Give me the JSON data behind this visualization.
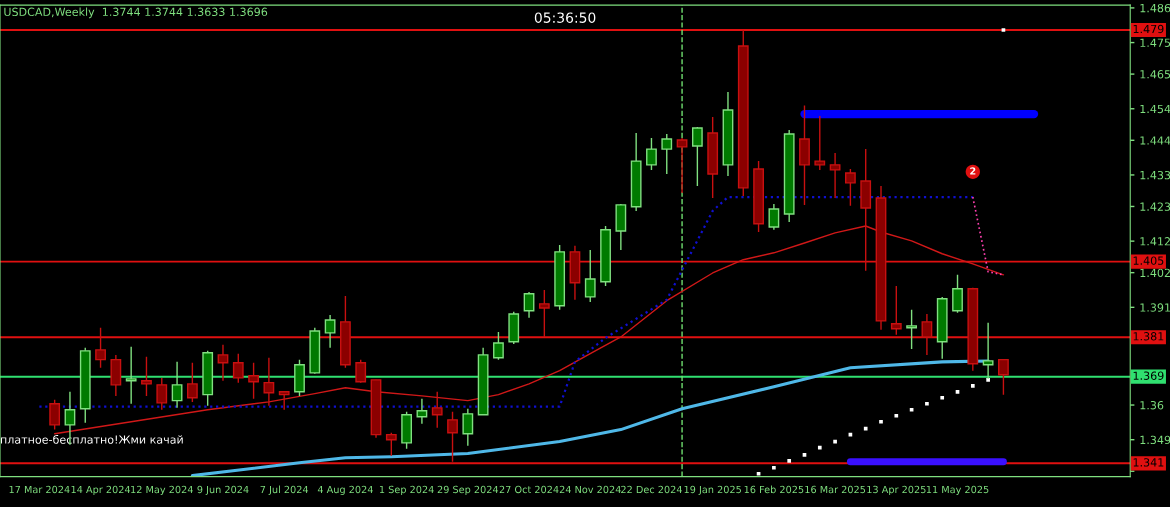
{
  "chart_data": {
    "type": "candlestick",
    "title": "USDCAD,Weekly  1.3744 1.3744 1.3633 1.3696",
    "x": [
      "2024-03-24",
      "2024-03-31",
      "2024-04-07",
      "2024-04-14",
      "2024-04-21",
      "2024-04-28",
      "2024-05-05",
      "2024-05-12",
      "2024-05-19",
      "2024-05-26",
      "2024-06-02",
      "2024-06-09",
      "2024-06-16",
      "2024-06-23",
      "2024-06-30",
      "2024-07-07",
      "2024-07-14",
      "2024-07-21",
      "2024-07-28",
      "2024-08-04",
      "2024-08-11",
      "2024-08-18",
      "2024-08-25",
      "2024-09-01",
      "2024-09-08",
      "2024-09-15",
      "2024-09-22",
      "2024-09-29",
      "2024-10-06",
      "2024-10-13",
      "2024-10-20",
      "2024-10-27",
      "2024-11-03",
      "2024-11-10",
      "2024-11-17",
      "2024-11-24",
      "2024-12-01",
      "2024-12-08",
      "2024-12-15",
      "2024-12-22",
      "2024-12-29",
      "2025-01-05",
      "2025-01-12",
      "2025-01-19",
      "2025-01-26",
      "2025-02-02",
      "2025-02-09",
      "2025-02-16",
      "2025-02-23",
      "2025-03-02",
      "2025-03-09",
      "2025-03-16",
      "2025-03-23",
      "2025-03-30",
      "2025-04-06",
      "2025-04-13",
      "2025-04-20",
      "2025-04-27",
      "2025-05-04",
      "2025-05-11",
      "2025-05-18",
      "2025-05-25",
      "2025-06-01"
    ],
    "ohlc": [
      [
        1.3604,
        1.3617,
        1.3522,
        1.3537
      ],
      [
        1.3537,
        1.3642,
        1.3474,
        1.3585
      ],
      [
        1.3588,
        1.3782,
        1.3544,
        1.3772
      ],
      [
        1.3775,
        1.3845,
        1.3718,
        1.3744
      ],
      [
        1.3744,
        1.3759,
        1.3629,
        1.3664
      ],
      [
        1.3677,
        1.3785,
        1.3604,
        1.3683
      ],
      [
        1.3677,
        1.3753,
        1.3629,
        1.3667
      ],
      [
        1.3664,
        1.3686,
        1.3585,
        1.3607
      ],
      [
        1.3614,
        1.3737,
        1.3591,
        1.3664
      ],
      [
        1.3667,
        1.3734,
        1.361,
        1.3623
      ],
      [
        1.3633,
        1.3772,
        1.3598,
        1.3766
      ],
      [
        1.3759,
        1.3791,
        1.3677,
        1.3734
      ],
      [
        1.3734,
        1.3763,
        1.3671,
        1.3686
      ],
      [
        1.3693,
        1.3734,
        1.362,
        1.3674
      ],
      [
        1.3671,
        1.375,
        1.3598,
        1.3639
      ],
      [
        1.3642,
        1.3642,
        1.3585,
        1.3633
      ],
      [
        1.3642,
        1.3744,
        1.3629,
        1.3728
      ],
      [
        1.3702,
        1.3845,
        1.3699,
        1.3835
      ],
      [
        1.3829,
        1.3886,
        1.3782,
        1.387
      ],
      [
        1.3864,
        1.3946,
        1.3718,
        1.3728
      ],
      [
        1.3734,
        1.3744,
        1.3671,
        1.3674
      ],
      [
        1.368,
        1.368,
        1.3496,
        1.3506
      ],
      [
        1.3506,
        1.3512,
        1.3439,
        1.349
      ],
      [
        1.348,
        1.3579,
        1.3461,
        1.3569
      ],
      [
        1.3563,
        1.362,
        1.3541,
        1.3582
      ],
      [
        1.3591,
        1.3642,
        1.3528,
        1.3569
      ],
      [
        1.3553,
        1.3579,
        1.342,
        1.3512
      ],
      [
        1.3509,
        1.3588,
        1.3471,
        1.3572
      ],
      [
        1.3569,
        1.3782,
        1.3569,
        1.3759
      ],
      [
        1.375,
        1.3832,
        1.3744,
        1.3797
      ],
      [
        1.3801,
        1.3896,
        1.3794,
        1.3889
      ],
      [
        1.3899,
        1.3959,
        1.3877,
        1.3953
      ],
      [
        1.3921,
        1.3965,
        1.3816,
        1.3908
      ],
      [
        1.3915,
        1.4108,
        1.3902,
        1.4086
      ],
      [
        1.4086,
        1.4105,
        1.3934,
        1.3988
      ],
      [
        1.3943,
        1.4092,
        1.3927,
        1.4
      ],
      [
        1.3991,
        1.4168,
        1.3978,
        1.4156
      ],
      [
        1.4152,
        1.4238,
        1.4092,
        1.4235
      ],
      [
        1.4229,
        1.4463,
        1.4216,
        1.4374
      ],
      [
        1.4362,
        1.4447,
        1.4346,
        1.4412
      ],
      [
        1.4412,
        1.446,
        1.4333,
        1.4444
      ],
      [
        1.4441,
        1.4447,
        1.4273,
        1.4419
      ],
      [
        1.4422,
        1.4482,
        1.4295,
        1.4479
      ],
      [
        1.4463,
        1.4514,
        1.4257,
        1.4333
      ],
      [
        1.4362,
        1.4593,
        1.4327,
        1.4536
      ],
      [
        1.4739,
        1.479,
        1.4263,
        1.4289
      ],
      [
        1.4349,
        1.4374,
        1.4149,
        1.4175
      ],
      [
        1.4165,
        1.4238,
        1.4156,
        1.4222
      ],
      [
        1.4206,
        1.4473,
        1.4181,
        1.446
      ],
      [
        1.4444,
        1.455,
        1.4235,
        1.4362
      ],
      [
        1.4374,
        1.4517,
        1.4346,
        1.4362
      ],
      [
        1.4362,
        1.44,
        1.4257,
        1.4346
      ],
      [
        1.4336,
        1.4349,
        1.4232,
        1.4305
      ],
      [
        1.4311,
        1.4412,
        1.4026,
        1.4225
      ],
      [
        1.4257,
        1.4295,
        1.3839,
        1.3867
      ],
      [
        1.3858,
        1.3978,
        1.3823,
        1.3842
      ],
      [
        1.3845,
        1.3902,
        1.3778,
        1.3851
      ],
      [
        1.3864,
        1.3889,
        1.3759,
        1.3816
      ],
      [
        1.3801,
        1.3943,
        1.3747,
        1.3937
      ],
      [
        1.3899,
        1.4013,
        1.3893,
        1.3969
      ],
      [
        1.3969,
        1.3972,
        1.3709,
        1.3731
      ],
      [
        1.3728,
        1.3861,
        1.3683,
        1.374
      ],
      [
        1.3744,
        1.3744,
        1.3633,
        1.3696
      ]
    ],
    "series": [
      {
        "type": "line",
        "color": "#d01818",
        "x": [
          "2024-03-24",
          "2024-04-28",
          "2024-06-02",
          "2024-06-30",
          "2024-07-21",
          "2024-08-04",
          "2024-08-18",
          "2024-09-08",
          "2024-09-29",
          "2024-10-13",
          "2024-10-27",
          "2024-11-10",
          "2024-11-24",
          "2024-12-08",
          "2024-12-29",
          "2025-01-19",
          "2025-02-02",
          "2025-02-16",
          "2025-03-02",
          "2025-03-16",
          "2025-03-30",
          "2025-04-06",
          "2025-04-20",
          "2025-05-04",
          "2025-05-18",
          "2025-06-01"
        ],
        "values": [
          1.3509,
          1.3547,
          1.3585,
          1.361,
          1.3636,
          1.3655,
          1.3642,
          1.3629,
          1.3614,
          1.3633,
          1.3667,
          1.3709,
          1.3763,
          1.3816,
          1.3931,
          1.4019,
          1.4061,
          1.4083,
          1.4114,
          1.4146,
          1.4168,
          1.4149,
          1.4121,
          1.408,
          1.4048,
          1.4013
        ]
      },
      {
        "type": "line",
        "color": "#4fb8e8",
        "x": [
          "2024-05-26",
          "2024-07-14",
          "2024-08-04",
          "2024-08-25",
          "2024-09-29",
          "2024-11-10",
          "2024-12-08",
          "2025-01-05",
          "2025-02-16",
          "2025-03-23",
          "2025-05-04",
          "2025-05-25"
        ],
        "values": [
          1.3376,
          1.3417,
          1.3433,
          1.3436,
          1.3446,
          1.3484,
          1.3522,
          1.3588,
          1.3658,
          1.3718,
          1.3737,
          1.374
        ]
      },
      {
        "type": "line",
        "color": "#1010d0",
        "line_style": "dotted",
        "x": [
          "2024-03-17",
          "2024-11-10",
          "2024-11-17",
          "2024-12-01",
          "2024-12-29",
          "2025-01-19",
          "2025-01-26",
          "2025-05-18"
        ],
        "values": [
          1.3595,
          1.3595,
          1.3737,
          1.3813,
          1.3934,
          1.4216,
          1.426,
          1.426
        ]
      },
      {
        "type": "line",
        "color": "#ff40b0",
        "line_style": "dotted",
        "x": [
          "2025-05-18",
          "2025-05-25",
          "2025-06-01"
        ],
        "values": [
          1.426,
          1.4023,
          1.4013
        ]
      },
      {
        "type": "scatter",
        "color": "#ffffff",
        "marker": "square",
        "x": [
          "2025-02-09",
          "2025-02-16",
          "2025-02-23",
          "2025-03-02",
          "2025-03-09",
          "2025-03-16",
          "2025-03-23",
          "2025-03-30",
          "2025-04-06",
          "2025-04-13",
          "2025-04-20",
          "2025-04-27",
          "2025-05-04",
          "2025-05-11",
          "2025-05-18",
          "2025-05-25",
          "2025-06-01"
        ],
        "values": [
          1.3382,
          1.3401,
          1.3423,
          1.3442,
          1.3465,
          1.3484,
          1.3506,
          1.3525,
          1.3547,
          1.3566,
          1.3585,
          1.3604,
          1.3623,
          1.3642,
          1.3661,
          1.368,
          1.479
        ]
      },
      {
        "type": "line",
        "color": "#0000ff",
        "x": [
          "2025-03-02",
          "2025-06-15"
        ],
        "values": [
          1.4523,
          1.4523
        ]
      },
      {
        "type": "line",
        "color": "#3a10ff",
        "x": [
          "2025-03-23",
          "2025-06-01"
        ],
        "values": [
          1.342,
          1.342
        ]
      }
    ],
    "ylim": [
      1.3373,
      1.4869
    ],
    "yticks": [
      1.486,
      1.475,
      1.465,
      1.454,
      1.444,
      1.433,
      1.423,
      1.412,
      1.402,
      1.391,
      1.36,
      1.349,
      {
        "value": 1.339,
        "label": null
      }
    ],
    "xlim": [
      "2024-02-28",
      "2025-07-29"
    ],
    "xticks": [
      {
        "value": "2024-03-17",
        "label": "17 Mar 2024"
      },
      {
        "value": "2024-04-14",
        "label": "14 Apr 2024"
      },
      {
        "value": "2024-05-12",
        "label": "12 May 2024"
      },
      {
        "value": "2024-06-09",
        "label": "9 Jun 2024"
      },
      {
        "value": "2024-07-07",
        "label": "7 Jul 2024"
      },
      {
        "value": "2024-08-04",
        "label": "4 Aug 2024"
      },
      {
        "value": "2024-09-01",
        "label": "1 Sep 2024"
      },
      {
        "value": "2024-09-29",
        "label": "29 Sep 2024"
      },
      {
        "value": "2024-10-27",
        "label": "27 Oct 2024"
      },
      {
        "value": "2024-11-24",
        "label": "24 Nov 2024"
      },
      {
        "value": "2024-12-22",
        "label": "22 Dec 2024"
      },
      {
        "value": "2025-01-19",
        "label": "19 Jan 2025"
      },
      {
        "value": "2025-02-16",
        "label": "16 Feb 2025"
      },
      {
        "value": "2025-03-16",
        "label": "16 Mar 2025"
      },
      {
        "value": "2025-04-13",
        "label": "13 Apr 2025"
      },
      {
        "value": "2025-05-11",
        "label": "11 May 2025"
      }
    ],
    "ref_lines": [
      {
        "axis": "y",
        "value": 1.479,
        "label": "1.479",
        "color": "#e01010"
      },
      {
        "axis": "y",
        "value": 1.4055,
        "label": "1.405",
        "color": "#e01010"
      },
      {
        "axis": "y",
        "value": 1.3815,
        "label": "1.381",
        "color": "#e01010"
      },
      {
        "axis": "y",
        "value": 1.3415,
        "label": "1.341",
        "color": "#e01010"
      },
      {
        "axis": "y",
        "value": 1.369,
        "label": "1.369",
        "color": "#30e070"
      },
      {
        "axis": "x",
        "value": "2025-01-05",
        "color": "#70e070",
        "line_style": "dashed"
      }
    ],
    "annotations": [
      "05:36:50",
      "платное-бесплатно!Жми качай",
      {
        "text": "2",
        "x": "2025-05-18",
        "y": 1.434
      }
    ]
  }
}
